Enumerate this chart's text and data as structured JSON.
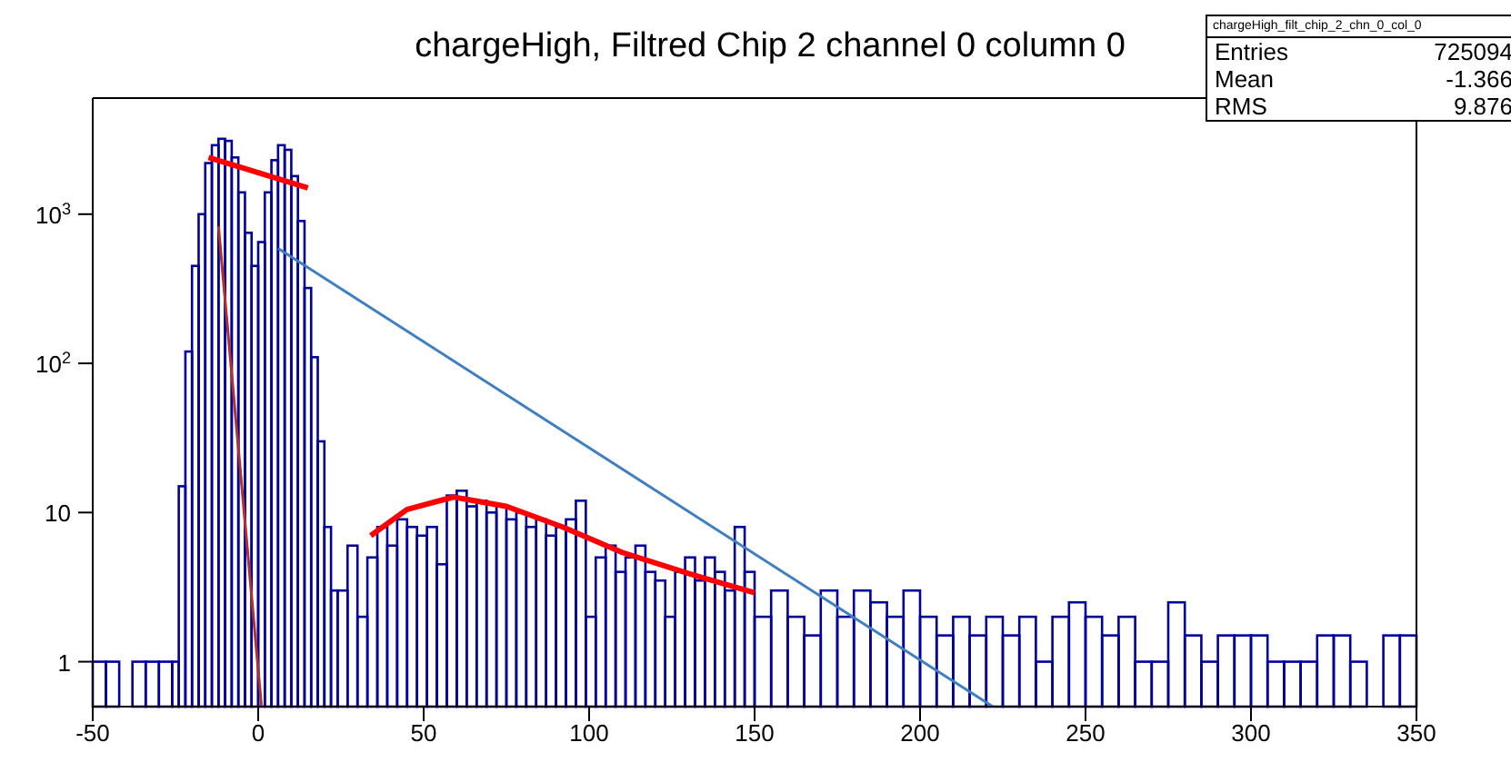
{
  "chart_data": {
    "type": "histogram",
    "title": "chargeHigh, Filtred Chip 2 channel 0 column 0",
    "log": "y",
    "grid": false,
    "xlim": [
      -50,
      350
    ],
    "xticks": [
      -50,
      0,
      50,
      100,
      150,
      200,
      250,
      300,
      350
    ],
    "ylim": [
      0.5,
      6000
    ],
    "yticks": [
      1,
      10,
      {
        "value": 100,
        "label": "10$^{2}$"
      },
      {
        "value": 1000,
        "label": "10$^{3}$"
      }
    ],
    "annotations": [
      "chargeHigh_filt_chip_2_chn_0_col_0",
      "Entries 725094",
      "Mean -1.366",
      "RMS 9.876"
    ],
    "series": [
      {
        "color": "#000099",
        "bins": [
          -50,
          -46,
          -42,
          -38,
          -34,
          -30,
          -26,
          -24,
          -22,
          -20,
          -18,
          -16,
          -14,
          -12,
          -10,
          -8,
          -6,
          -4,
          -2,
          0,
          2,
          4,
          6,
          8,
          10,
          12,
          14,
          16,
          18,
          20,
          22,
          24,
          27,
          30,
          33,
          36,
          39,
          42,
          45,
          48,
          51,
          54,
          57,
          60,
          63,
          66,
          69,
          72,
          75,
          78,
          81,
          84,
          87,
          90,
          93,
          96,
          99,
          102,
          105,
          108,
          111,
          114,
          117,
          120,
          123,
          126,
          129,
          132,
          135,
          138,
          141,
          144,
          147,
          150,
          155,
          160,
          165,
          170,
          175,
          180,
          185,
          190,
          195,
          200,
          205,
          210,
          215,
          220,
          225,
          230,
          235,
          240,
          245,
          250,
          255,
          260,
          265,
          270,
          275,
          280,
          285,
          290,
          295,
          300,
          305,
          310,
          315,
          320,
          325,
          330,
          335,
          340,
          345,
          350
        ],
        "values": [
          1,
          1,
          null,
          1,
          1,
          1,
          1,
          15,
          120,
          450,
          1000,
          2200,
          2900,
          3200,
          3100,
          2400,
          1400,
          750,
          450,
          650,
          1400,
          2300,
          2900,
          2700,
          1800,
          900,
          320,
          110,
          30,
          8,
          3,
          3,
          6,
          2,
          5,
          8,
          6,
          9,
          8,
          7,
          8,
          4.5,
          13,
          14,
          11,
          12,
          10,
          11,
          9,
          10,
          8,
          9,
          7,
          8,
          9,
          12,
          2,
          5,
          6,
          4,
          5,
          6,
          4,
          3.5,
          2,
          4,
          5,
          3.5,
          5,
          4,
          3,
          8,
          4,
          2,
          3,
          2,
          1.5,
          3,
          2,
          3,
          2.5,
          2,
          3,
          2,
          1.5,
          2,
          1.5,
          2,
          1.5,
          2,
          1,
          2,
          2.5,
          2,
          1.5,
          2,
          1,
          1,
          2.5,
          1.5,
          1,
          1.5,
          1.5,
          1.5,
          1,
          1,
          1,
          1.5,
          1.5,
          1,
          null,
          1.5,
          1.5
        ]
      },
      {
        "type": "line",
        "color": "#ff0000",
        "x": [
          -15,
          15
        ],
        "values": [
          2400,
          1500
        ]
      },
      {
        "type": "line",
        "color": "#b03030",
        "x": [
          -12,
          1
        ],
        "values": [
          830,
          0.5
        ]
      },
      {
        "type": "line",
        "color": "#3f7fbf",
        "x": [
          6,
          222
        ],
        "values": [
          590,
          0.5
        ]
      },
      {
        "type": "line",
        "color": "#ff0000",
        "x": [
          34,
          45,
          59,
          75,
          92,
          110,
          130,
          150
        ],
        "values": [
          7,
          10.5,
          12.7,
          11,
          8,
          5.4,
          3.9,
          2.9
        ]
      }
    ]
  }
}
